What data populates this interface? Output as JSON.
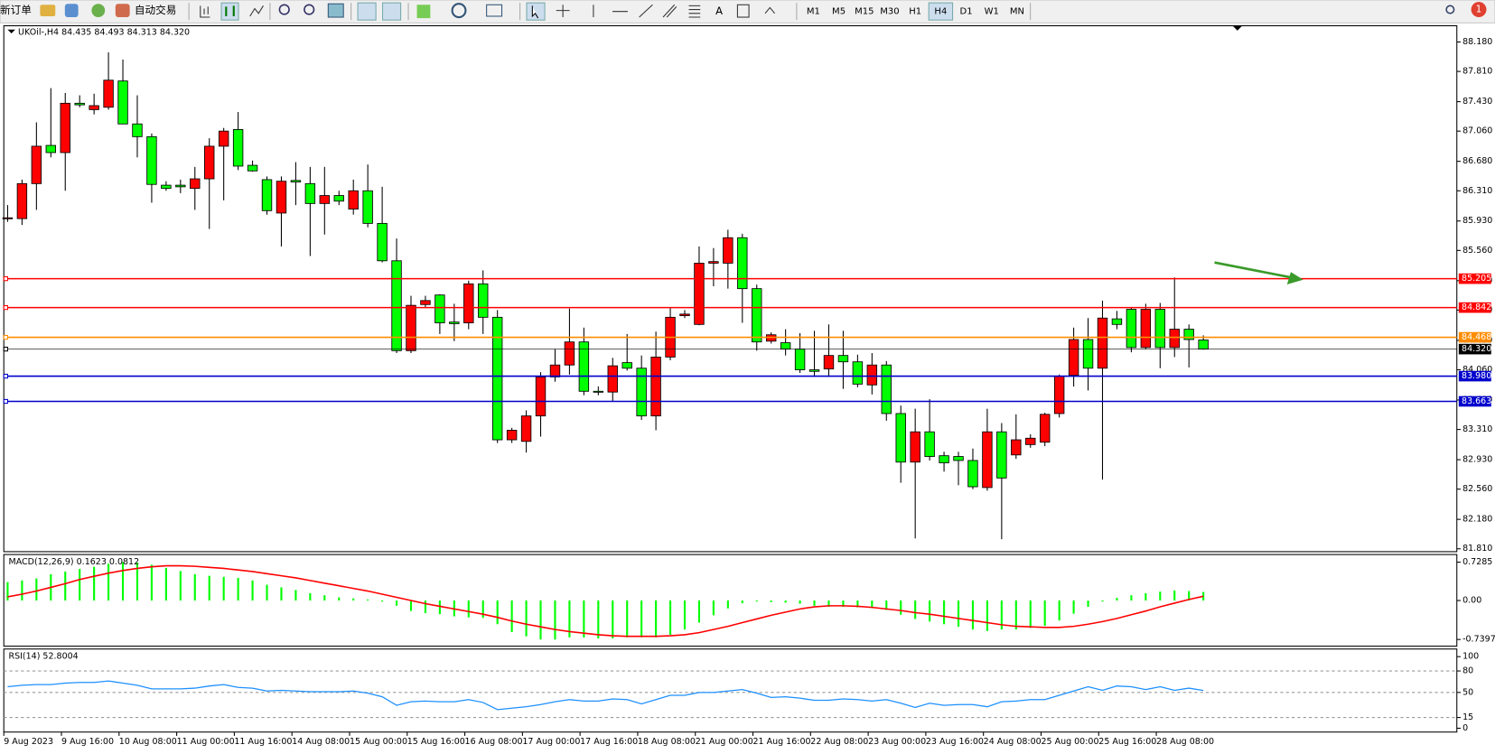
{
  "toolbar": {
    "new_order": "新订单",
    "auto_trading": "自动交易",
    "text_tool": "A",
    "timeframes": [
      "M1",
      "M5",
      "M15",
      "M30",
      "H1",
      "H4",
      "D1",
      "W1",
      "MN"
    ],
    "active_timeframe": "H4",
    "notifications": "1"
  },
  "chart_data": [
    {
      "type": "candlestick",
      "title": "UKOil-,H4 84.435 84.493 84.313 84.320",
      "categories": [
        "9 Aug 2023",
        null,
        null,
        null,
        "9 Aug 16:00",
        null,
        null,
        null,
        "10 Aug 08:00",
        null,
        null,
        null,
        "11 Aug 00:00",
        null,
        null,
        null,
        "11 Aug 16:00",
        null,
        null,
        null,
        "14 Aug 08:00",
        null,
        null,
        null,
        "15 Aug 00:00",
        null,
        null,
        null,
        "15 Aug 16:00",
        null,
        null,
        null,
        "16 Aug 08:00",
        null,
        null,
        null,
        "17 Aug 00:00",
        null,
        null,
        null,
        "17 Aug 16:00",
        null,
        null,
        null,
        "18 Aug 08:00",
        null,
        null,
        null,
        "21 Aug 00:00",
        null,
        null,
        null,
        "21 Aug 16:00",
        null,
        null,
        null,
        "22 Aug 08:00",
        null,
        null,
        null,
        "23 Aug 00:00",
        null,
        null,
        null,
        "23 Aug 16:00",
        null,
        null,
        null,
        "24 Aug 08:00",
        null,
        null,
        null,
        "25 Aug 00:00",
        null,
        null,
        null,
        "25 Aug 16:00",
        null,
        null,
        null,
        "28 Aug 08:00",
        null,
        null,
        null
      ],
      "open": [
        85.96,
        85.96,
        86.4,
        86.88,
        86.79,
        87.41,
        87.33,
        87.36,
        87.69,
        87.15,
        86.99,
        86.38,
        86.38,
        86.34,
        86.46,
        86.87,
        87.08,
        86.63,
        86.45,
        86.03,
        86.44,
        86.4,
        86.15,
        86.25,
        86.08,
        86.31,
        85.9,
        85.43,
        84.3,
        84.88,
        85.0,
        84.66,
        84.65,
        85.14,
        84.72,
        83.18,
        83.16,
        83.48,
        83.97,
        84.12,
        84.41,
        83.79,
        83.78,
        84.15,
        84.08,
        83.48,
        84.22,
        84.74,
        84.63,
        85.4,
        85.4,
        85.72,
        85.08,
        84.42,
        84.4,
        84.32,
        84.06,
        84.07,
        84.24,
        84.16,
        83.87,
        84.12,
        83.51,
        82.9,
        83.28,
        82.98,
        82.97,
        82.92,
        82.58,
        83.28,
        82.99,
        83.12,
        83.15,
        83.51,
        83.99,
        84.44,
        84.08,
        84.7,
        84.82,
        84.34,
        84.82,
        84.34,
        84.57,
        84.435
      ],
      "high": [
        86.13,
        86.45,
        87.17,
        87.6,
        87.54,
        87.51,
        87.53,
        88.05,
        87.96,
        87.51,
        87.03,
        86.43,
        86.45,
        86.61,
        86.97,
        87.1,
        87.3,
        86.69,
        86.49,
        86.49,
        86.67,
        86.61,
        86.61,
        86.31,
        86.45,
        86.64,
        86.36,
        85.71,
        84.99,
        84.99,
        85.01,
        84.89,
        85.18,
        85.31,
        84.81,
        83.33,
        83.55,
        84.03,
        84.32,
        84.83,
        84.59,
        83.85,
        84.21,
        84.51,
        84.24,
        84.54,
        84.84,
        84.81,
        85.61,
        85.59,
        85.82,
        85.77,
        85.13,
        84.53,
        84.57,
        84.52,
        84.55,
        84.63,
        84.55,
        84.25,
        84.27,
        84.17,
        83.61,
        83.57,
        83.69,
        83.03,
        83.03,
        83.07,
        83.57,
        83.39,
        83.5,
        83.25,
        83.52,
        84.0,
        84.59,
        84.71,
        84.93,
        84.8,
        84.84,
        84.89,
        84.9,
        85.22,
        84.63,
        84.493
      ],
      "low": [
        85.92,
        85.88,
        86.07,
        86.73,
        86.31,
        87.36,
        87.27,
        87.33,
        87.15,
        86.73,
        86.16,
        86.31,
        86.28,
        86.07,
        85.83,
        86.19,
        86.57,
        86.55,
        86.01,
        85.61,
        86.13,
        85.49,
        85.76,
        86.13,
        86.01,
        85.85,
        85.41,
        84.27,
        84.27,
        84.84,
        84.51,
        84.42,
        84.57,
        84.51,
        83.14,
        83.14,
        83.02,
        83.22,
        83.91,
        84.0,
        83.74,
        83.74,
        83.66,
        84.05,
        83.43,
        83.3,
        84.18,
        84.71,
        84.62,
        85.11,
        85.08,
        84.65,
        84.3,
        84.39,
        84.24,
        84.02,
        83.97,
        83.97,
        83.82,
        83.84,
        83.75,
        83.42,
        82.64,
        81.94,
        82.92,
        82.78,
        82.61,
        82.56,
        82.54,
        81.93,
        82.94,
        83.08,
        83.1,
        83.46,
        83.85,
        83.8,
        82.68,
        84.57,
        84.28,
        84.32,
        84.08,
        84.22,
        84.09,
        84.313
      ],
      "close": [
        85.97,
        86.4,
        86.87,
        86.79,
        87.41,
        87.39,
        87.38,
        87.7,
        87.15,
        86.99,
        86.39,
        86.34,
        86.36,
        86.46,
        86.87,
        87.06,
        86.62,
        86.56,
        86.06,
        86.43,
        86.42,
        86.15,
        86.25,
        86.18,
        86.31,
        85.9,
        85.43,
        84.3,
        84.87,
        84.93,
        84.65,
        84.64,
        85.14,
        84.72,
        83.18,
        83.3,
        83.48,
        83.97,
        84.12,
        84.41,
        83.79,
        83.78,
        84.11,
        84.08,
        83.48,
        84.22,
        84.72,
        84.76,
        85.4,
        85.42,
        85.72,
        85.08,
        84.41,
        84.5,
        84.32,
        84.06,
        84.04,
        84.24,
        84.16,
        83.88,
        84.12,
        83.51,
        82.9,
        83.28,
        82.97,
        82.89,
        82.92,
        82.59,
        83.28,
        82.7,
        83.18,
        83.2,
        83.5,
        83.98,
        84.44,
        84.08,
        84.71,
        84.63,
        84.34,
        84.82,
        84.34,
        84.57,
        84.44,
        84.32
      ],
      "up_color": "#ff0000",
      "down_color": "#00ff00",
      "ylim": [
        81.81,
        88.18
      ],
      "yticks": [
        {
          "value": 88.18,
          "label": "88.180"
        },
        {
          "value": 87.81,
          "label": "87.810"
        },
        {
          "value": 87.43,
          "label": "87.430"
        },
        {
          "value": 87.06,
          "label": "87.060"
        },
        {
          "value": 86.68,
          "label": "86.680"
        },
        {
          "value": 86.31,
          "label": "86.310"
        },
        {
          "value": 85.93,
          "label": "85.930"
        },
        {
          "value": 85.56,
          "label": "85.560"
        },
        {
          "value": 85.18,
          "label": "85.180"
        },
        {
          "value": 84.81,
          "label": "84.810"
        },
        {
          "value": 84.43,
          "label": "84.430"
        },
        {
          "value": 84.06,
          "label": "84.060"
        },
        {
          "value": 83.68,
          "label": "83.680"
        },
        {
          "value": 83.31,
          "label": "83.310"
        },
        {
          "value": 82.93,
          "label": "82.930"
        },
        {
          "value": 82.56,
          "label": "82.560"
        },
        {
          "value": 82.18,
          "label": "82.180"
        },
        {
          "value": 81.81,
          "label": "81.810"
        }
      ],
      "hlines": [
        {
          "value": 85.205,
          "color": "#ff0000"
        },
        {
          "value": 84.842,
          "color": "#ff0000"
        },
        {
          "value": 84.468,
          "color": "#ff8c00"
        },
        {
          "value": 84.32,
          "label": "84.320",
          "color": "#000000"
        },
        {
          "value": 83.98,
          "label": "83.980",
          "color": "#0000cd"
        },
        {
          "value": 83.663,
          "color": "#0000cd"
        }
      ]
    },
    {
      "type": "macd",
      "title": "MACD(12,26,9) 0.1623 0.0812",
      "histogram": {
        "color": "#00ff00",
        "values": [
          0.35,
          0.38,
          0.42,
          0.5,
          0.55,
          0.6,
          0.64,
          0.7,
          0.73,
          0.72,
          0.68,
          0.62,
          0.56,
          0.5,
          0.47,
          0.45,
          0.43,
          0.38,
          0.3,
          0.25,
          0.2,
          0.14,
          0.1,
          0.06,
          0.04,
          0.02,
          -0.02,
          -0.1,
          -0.2,
          -0.24,
          -0.26,
          -0.3,
          -0.32,
          -0.33,
          -0.45,
          -0.6,
          -0.68,
          -0.74,
          -0.74,
          -0.7,
          -0.7,
          -0.72,
          -0.72,
          -0.7,
          -0.7,
          -0.7,
          -0.65,
          -0.55,
          -0.42,
          -0.28,
          -0.15,
          -0.05,
          -0.02,
          -0.03,
          -0.04,
          -0.06,
          -0.1,
          -0.12,
          -0.12,
          -0.13,
          -0.14,
          -0.18,
          -0.27,
          -0.35,
          -0.4,
          -0.45,
          -0.5,
          -0.55,
          -0.58,
          -0.55,
          -0.55,
          -0.52,
          -0.48,
          -0.38,
          -0.25,
          -0.12,
          -0.02,
          0.05,
          0.1,
          0.14,
          0.17,
          0.19,
          0.18,
          0.1623
        ]
      },
      "signal": {
        "color": "#ff0000",
        "values": [
          0.07,
          0.12,
          0.18,
          0.25,
          0.32,
          0.4,
          0.46,
          0.52,
          0.57,
          0.61,
          0.64,
          0.66,
          0.66,
          0.65,
          0.63,
          0.61,
          0.58,
          0.55,
          0.51,
          0.47,
          0.43,
          0.38,
          0.33,
          0.28,
          0.23,
          0.18,
          0.12,
          0.06,
          0.0,
          -0.06,
          -0.11,
          -0.16,
          -0.21,
          -0.26,
          -0.32,
          -0.39,
          -0.45,
          -0.5,
          -0.55,
          -0.59,
          -0.62,
          -0.65,
          -0.67,
          -0.68,
          -0.68,
          -0.68,
          -0.67,
          -0.65,
          -0.61,
          -0.55,
          -0.49,
          -0.42,
          -0.35,
          -0.28,
          -0.22,
          -0.16,
          -0.12,
          -0.1,
          -0.1,
          -0.11,
          -0.13,
          -0.16,
          -0.19,
          -0.23,
          -0.26,
          -0.3,
          -0.34,
          -0.38,
          -0.42,
          -0.46,
          -0.49,
          -0.5,
          -0.51,
          -0.51,
          -0.49,
          -0.45,
          -0.4,
          -0.34,
          -0.27,
          -0.2,
          -0.12,
          -0.05,
          0.02,
          0.0812
        ]
      },
      "ylim": [
        -0.7397,
        0.7285
      ],
      "yticks": [
        0.7285,
        {
          "value": 0,
          "label": "0.00"
        },
        -0.7397
      ]
    },
    {
      "type": "line",
      "title": "RSI(14) 52.8004",
      "color": "#1e90ff",
      "grid": true,
      "values": [
        58,
        60,
        61,
        61,
        63,
        64,
        64,
        66,
        63,
        60,
        55,
        55,
        55,
        56,
        59,
        61,
        57,
        56,
        52,
        53,
        52,
        51,
        51,
        51,
        52,
        49,
        44,
        32,
        37,
        38,
        37,
        37,
        40,
        36,
        26,
        28,
        30,
        33,
        37,
        40,
        38,
        38,
        41,
        40,
        34,
        40,
        46,
        46,
        50,
        50,
        52,
        54,
        49,
        43,
        44,
        42,
        39,
        39,
        41,
        40,
        38,
        40,
        35,
        29,
        35,
        32,
        33,
        33,
        30,
        37,
        38,
        40,
        40,
        46,
        52,
        58,
        53,
        59,
        58,
        54,
        58,
        53,
        56,
        52.8004
      ],
      "ylim": [
        0,
        100
      ],
      "yticks": [
        100,
        80,
        50,
        15,
        0
      ]
    }
  ]
}
